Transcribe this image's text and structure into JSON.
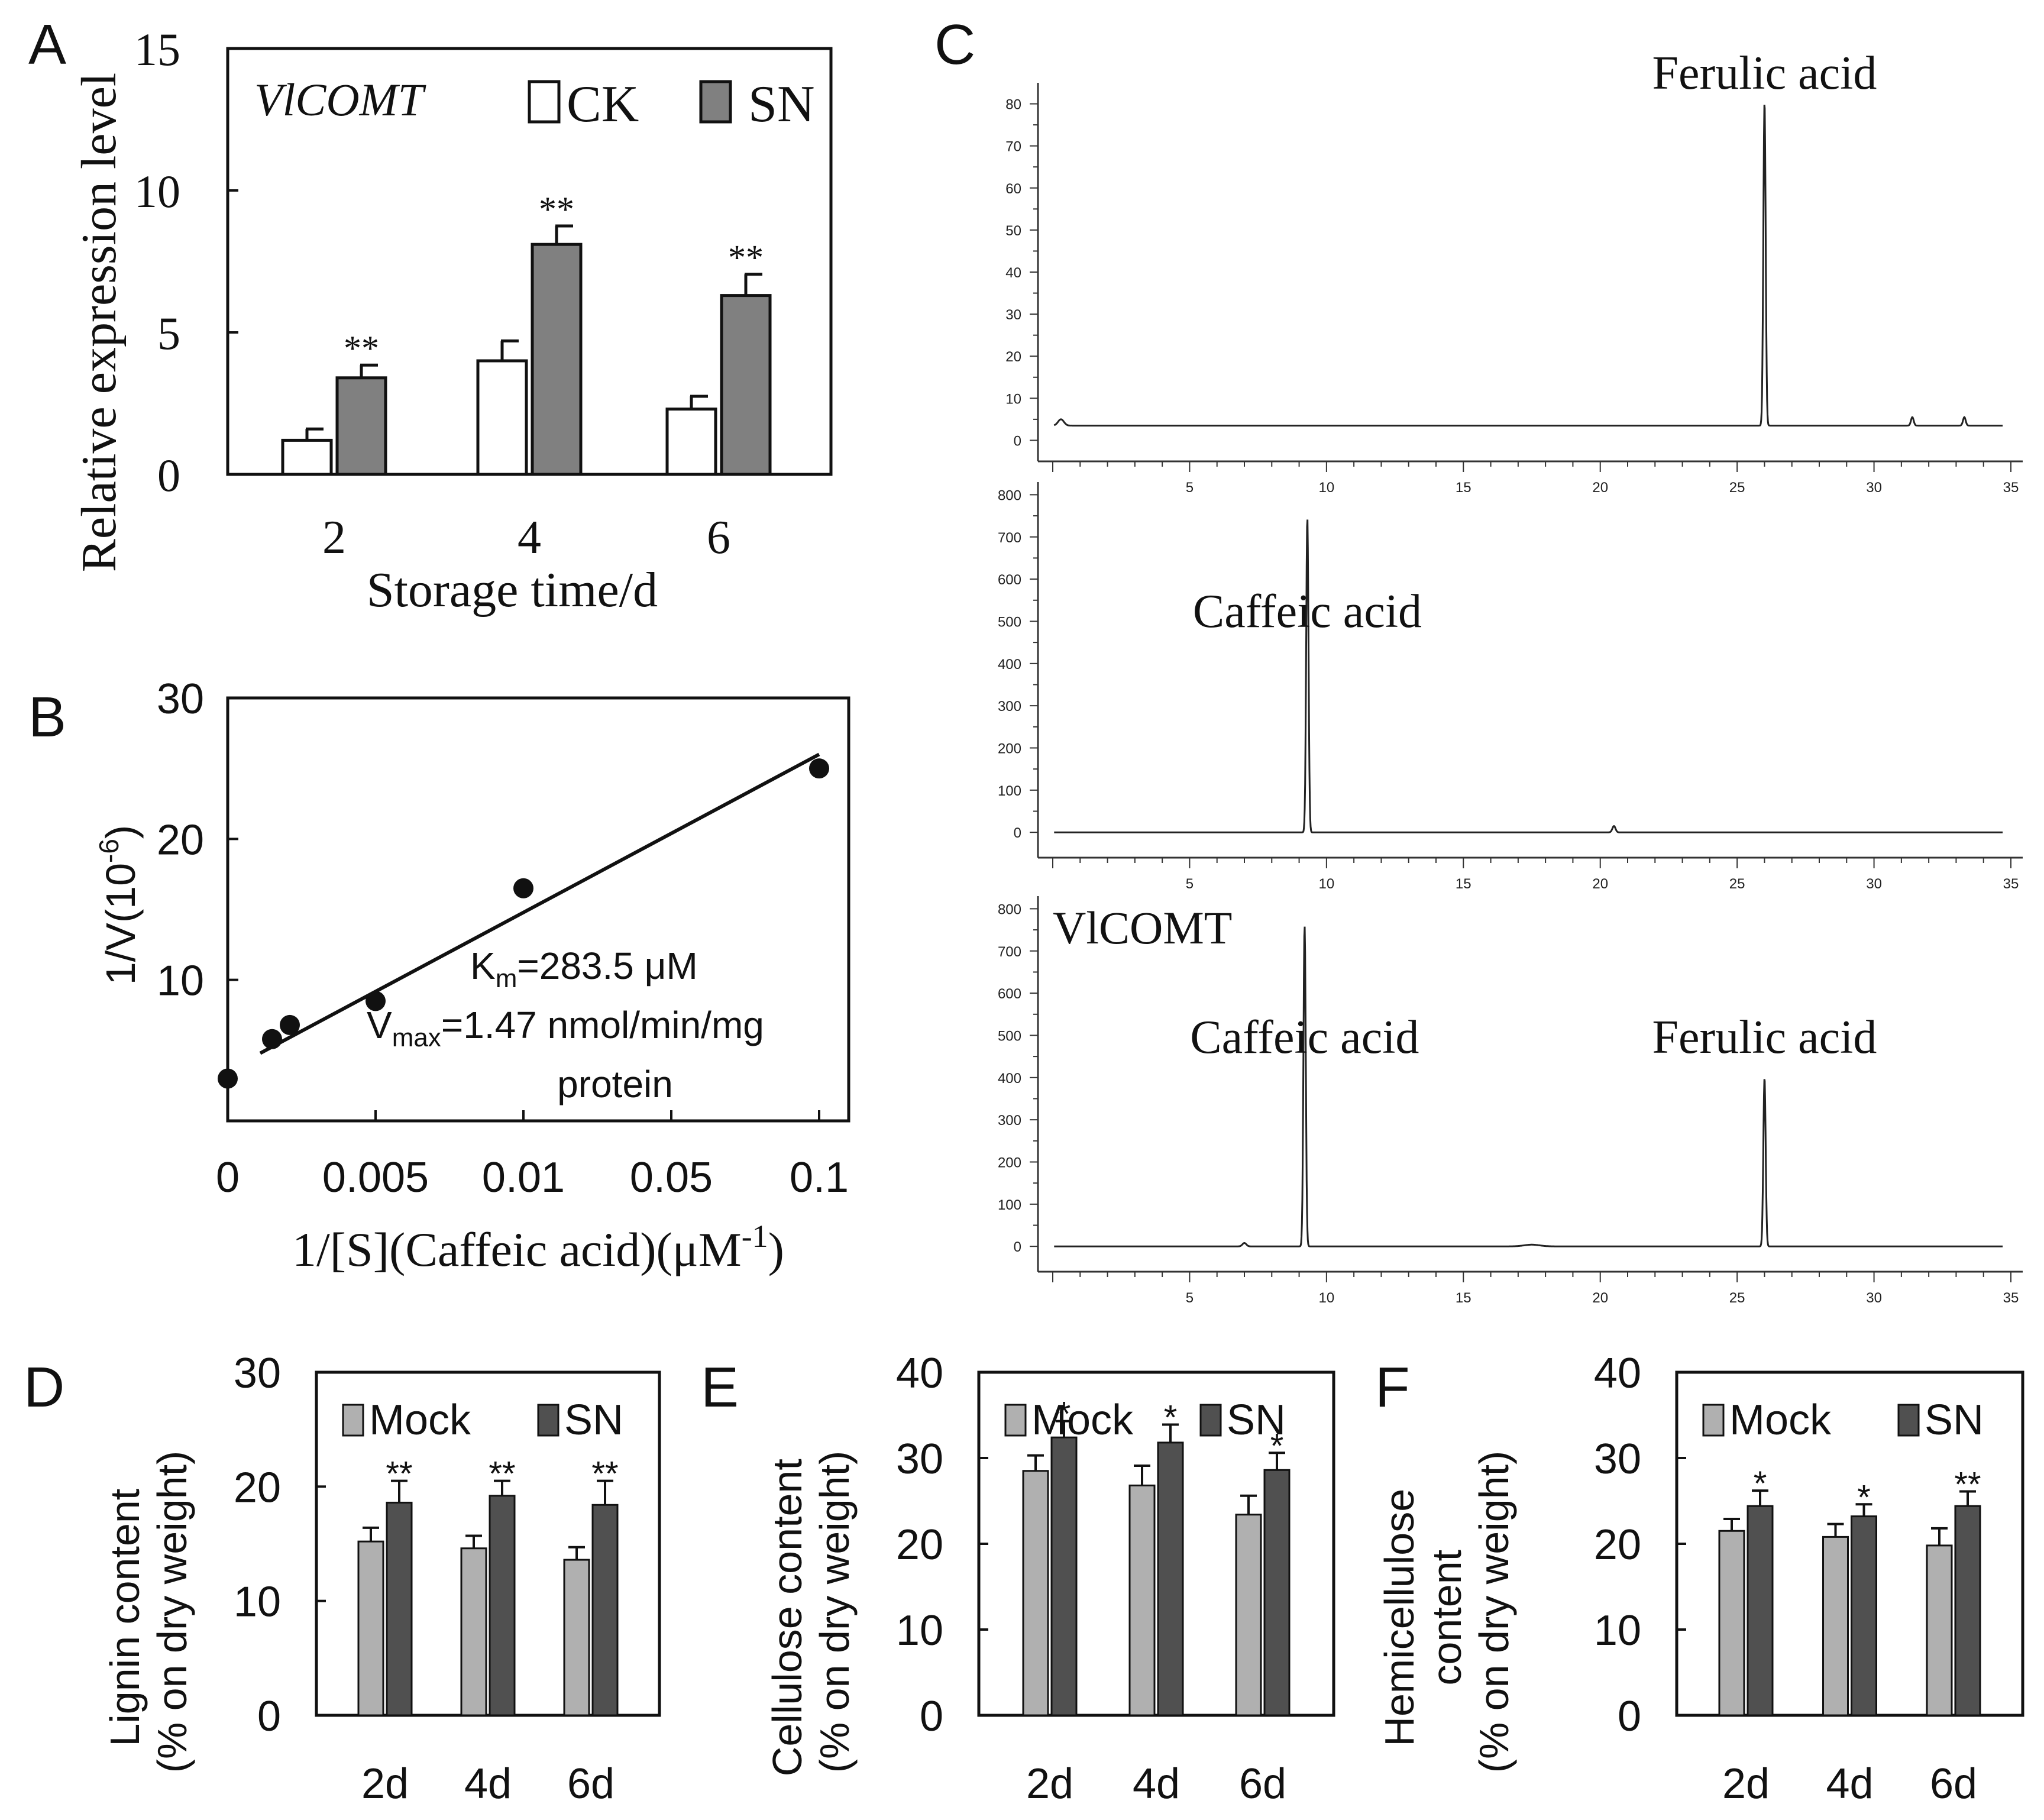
{
  "chart_data": [
    {
      "panel": "A",
      "type": "bar",
      "gene": "VlCOMT",
      "xlabel": "Storage time/d",
      "ylabel": "Relative expression level",
      "categories": [
        "2",
        "4",
        "6"
      ],
      "ylim": [
        0,
        15
      ],
      "yticks": [
        0,
        5,
        10,
        15
      ],
      "ytick_labels": [
        "0",
        "5",
        "10",
        "15"
      ],
      "series": [
        {
          "name": "CK",
          "color": "#ffffff",
          "values": [
            1.2,
            4.0,
            2.3
          ],
          "errors": [
            0.4,
            0.7,
            0.45
          ],
          "sig": [
            "",
            "",
            ""
          ]
        },
        {
          "name": "SN",
          "color": "#808080",
          "values": [
            3.4,
            8.1,
            6.3
          ],
          "errors": [
            0.45,
            0.65,
            0.75
          ],
          "sig": [
            "**",
            "**",
            "**"
          ]
        }
      ]
    },
    {
      "panel": "B",
      "type": "scatter",
      "xlabel_main": "1/[S](Caffeic acid)(μM",
      "xlabel_sup": "-1",
      "xlabel_close": ")",
      "ylabel_main": "1/V(10",
      "ylabel_sup": "-6",
      "ylabel_close": ")",
      "xtick_labels": [
        "0",
        "0.005",
        "0.01",
        "0.05",
        "0.1"
      ],
      "ylim": [
        0,
        30
      ],
      "yticks": [
        10,
        20,
        30
      ],
      "ytick_labels": [
        "10",
        "20",
        "30"
      ],
      "points": [
        {
          "x_index": 0.0,
          "y": 3.0
        },
        {
          "x_index": 0.3,
          "y": 5.8
        },
        {
          "x_index": 0.42,
          "y": 6.8
        },
        {
          "x_index": 1.0,
          "y": 8.5
        },
        {
          "x_index": 2.0,
          "y": 16.5
        },
        {
          "x_index": 4.0,
          "y": 25.0
        }
      ],
      "fit_line": {
        "x_index": [
          0.0,
          4.0
        ],
        "y": [
          4.8,
          26.0
        ]
      },
      "annotation": {
        "km_prefix": "K",
        "km_sub": "m",
        "km_value": "=283.5 μM",
        "vmax_prefix": "V",
        "vmax_sub": "max",
        "vmax_value": "=1.47  nmol/min/mg",
        "vmax_line2": "protein"
      }
    },
    {
      "panel": "C",
      "type": "line",
      "xlim": [
        0,
        35
      ],
      "xtick_labels": [
        "5",
        "10",
        "15",
        "20",
        "25",
        "30",
        "35"
      ],
      "charts": [
        {
          "name": "ferulic-standard",
          "ylim": [
            -5,
            85
          ],
          "ytick_labels": [
            "0",
            "10",
            "20",
            "30",
            "40",
            "50",
            "60",
            "70",
            "80"
          ],
          "baseline": 3.5,
          "peaks": [
            {
              "rt": 0.3,
              "height": 1.5,
              "width": 0.15
            },
            {
              "rt": 26.0,
              "height": 77.0,
              "width": 0.06
            },
            {
              "rt": 31.4,
              "height": 2.0,
              "width": 0.07
            },
            {
              "rt": 33.3,
              "height": 2.0,
              "width": 0.07
            }
          ],
          "labels": [
            {
              "text": "Ferulic acid",
              "rt": 26.0
            }
          ]
        },
        {
          "name": "caffeic-standard",
          "ylim": [
            -60,
            830
          ],
          "ytick_labels": [
            "0",
            "100",
            "200",
            "300",
            "400",
            "500",
            "600",
            "700",
            "800"
          ],
          "baseline": 0,
          "peaks": [
            {
              "rt": 9.3,
              "height": 745.0,
              "width": 0.06
            },
            {
              "rt": 20.5,
              "height": 15.0,
              "width": 0.08
            }
          ],
          "labels": [
            {
              "text": "Caffeic acid",
              "rt": 9.3
            }
          ]
        },
        {
          "name": "vlcomt-reaction",
          "title": "VlCOMT",
          "ylim": [
            -60,
            830
          ],
          "ytick_labels": [
            "0",
            "100",
            "200",
            "300",
            "400",
            "500",
            "600",
            "700",
            "800"
          ],
          "baseline": 0,
          "peaks": [
            {
              "rt": 7.0,
              "height": 8.0,
              "width": 0.1
            },
            {
              "rt": 9.2,
              "height": 760.0,
              "width": 0.06
            },
            {
              "rt": 26.0,
              "height": 400.0,
              "width": 0.06
            },
            {
              "rt": 17.5,
              "height": 4.0,
              "width": 0.4
            }
          ],
          "labels": [
            {
              "text": "Caffeic acid",
              "rt": 9.2
            },
            {
              "text": "Ferulic acid",
              "rt": 26.0
            }
          ]
        }
      ]
    },
    {
      "panel": "D",
      "type": "bar",
      "ylabel_line1": "Lignin content",
      "ylabel_line2": "(% on dry weight)",
      "categories": [
        "2d",
        "4d",
        "6d"
      ],
      "ylim": [
        0,
        30
      ],
      "ytick_labels": [
        "0",
        "10",
        "20",
        "30"
      ],
      "series": [
        {
          "name": "Mock",
          "color": "#b0b0b0",
          "values": [
            15.2,
            14.6,
            13.6
          ],
          "errors": [
            1.2,
            1.1,
            1.1
          ],
          "sig": [
            "",
            "",
            ""
          ]
        },
        {
          "name": "SN",
          "color": "#505050",
          "values": [
            18.6,
            19.2,
            18.4
          ],
          "errors": [
            1.9,
            1.3,
            2.1
          ],
          "sig": [
            "**",
            "**",
            "**"
          ]
        }
      ]
    },
    {
      "panel": "E",
      "type": "bar",
      "ylabel_line1": "Cellulose content",
      "ylabel_line2": "(% on dry weight)",
      "categories": [
        "2d",
        "4d",
        "6d"
      ],
      "ylim": [
        0,
        40
      ],
      "ytick_labels": [
        "0",
        "10",
        "20",
        "30",
        "40"
      ],
      "series": [
        {
          "name": "Mock",
          "color": "#b0b0b0",
          "values": [
            28.5,
            26.8,
            23.4
          ],
          "errors": [
            1.8,
            2.3,
            2.2
          ],
          "sig": [
            "",
            "",
            ""
          ]
        },
        {
          "name": "SN",
          "color": "#505050",
          "values": [
            32.4,
            31.8,
            28.6
          ],
          "errors": [
            1.9,
            2.1,
            2.0
          ],
          "sig": [
            "*",
            "*",
            "*"
          ]
        }
      ]
    },
    {
      "panel": "F",
      "type": "bar",
      "ylabel_line1": "Hemicellulose",
      "ylabel_line2": "content",
      "ylabel_line3": "(% on dry weight)",
      "categories": [
        "2d",
        "4d",
        "6d"
      ],
      "ylim": [
        0,
        40
      ],
      "ytick_labels": [
        "0",
        "10",
        "20",
        "30",
        "40"
      ],
      "series": [
        {
          "name": "Mock",
          "color": "#b0b0b0",
          "values": [
            21.5,
            20.8,
            19.8
          ],
          "errors": [
            1.4,
            1.5,
            2.0
          ],
          "sig": [
            "",
            "",
            ""
          ]
        },
        {
          "name": "SN",
          "color": "#505050",
          "values": [
            24.4,
            23.2,
            24.4
          ],
          "errors": [
            1.8,
            1.4,
            1.7
          ],
          "sig": [
            "*",
            "*",
            "**"
          ]
        }
      ]
    }
  ],
  "panels": {
    "a": "A",
    "b": "B",
    "c": "C",
    "d": "D",
    "e": "E",
    "f": "F"
  }
}
